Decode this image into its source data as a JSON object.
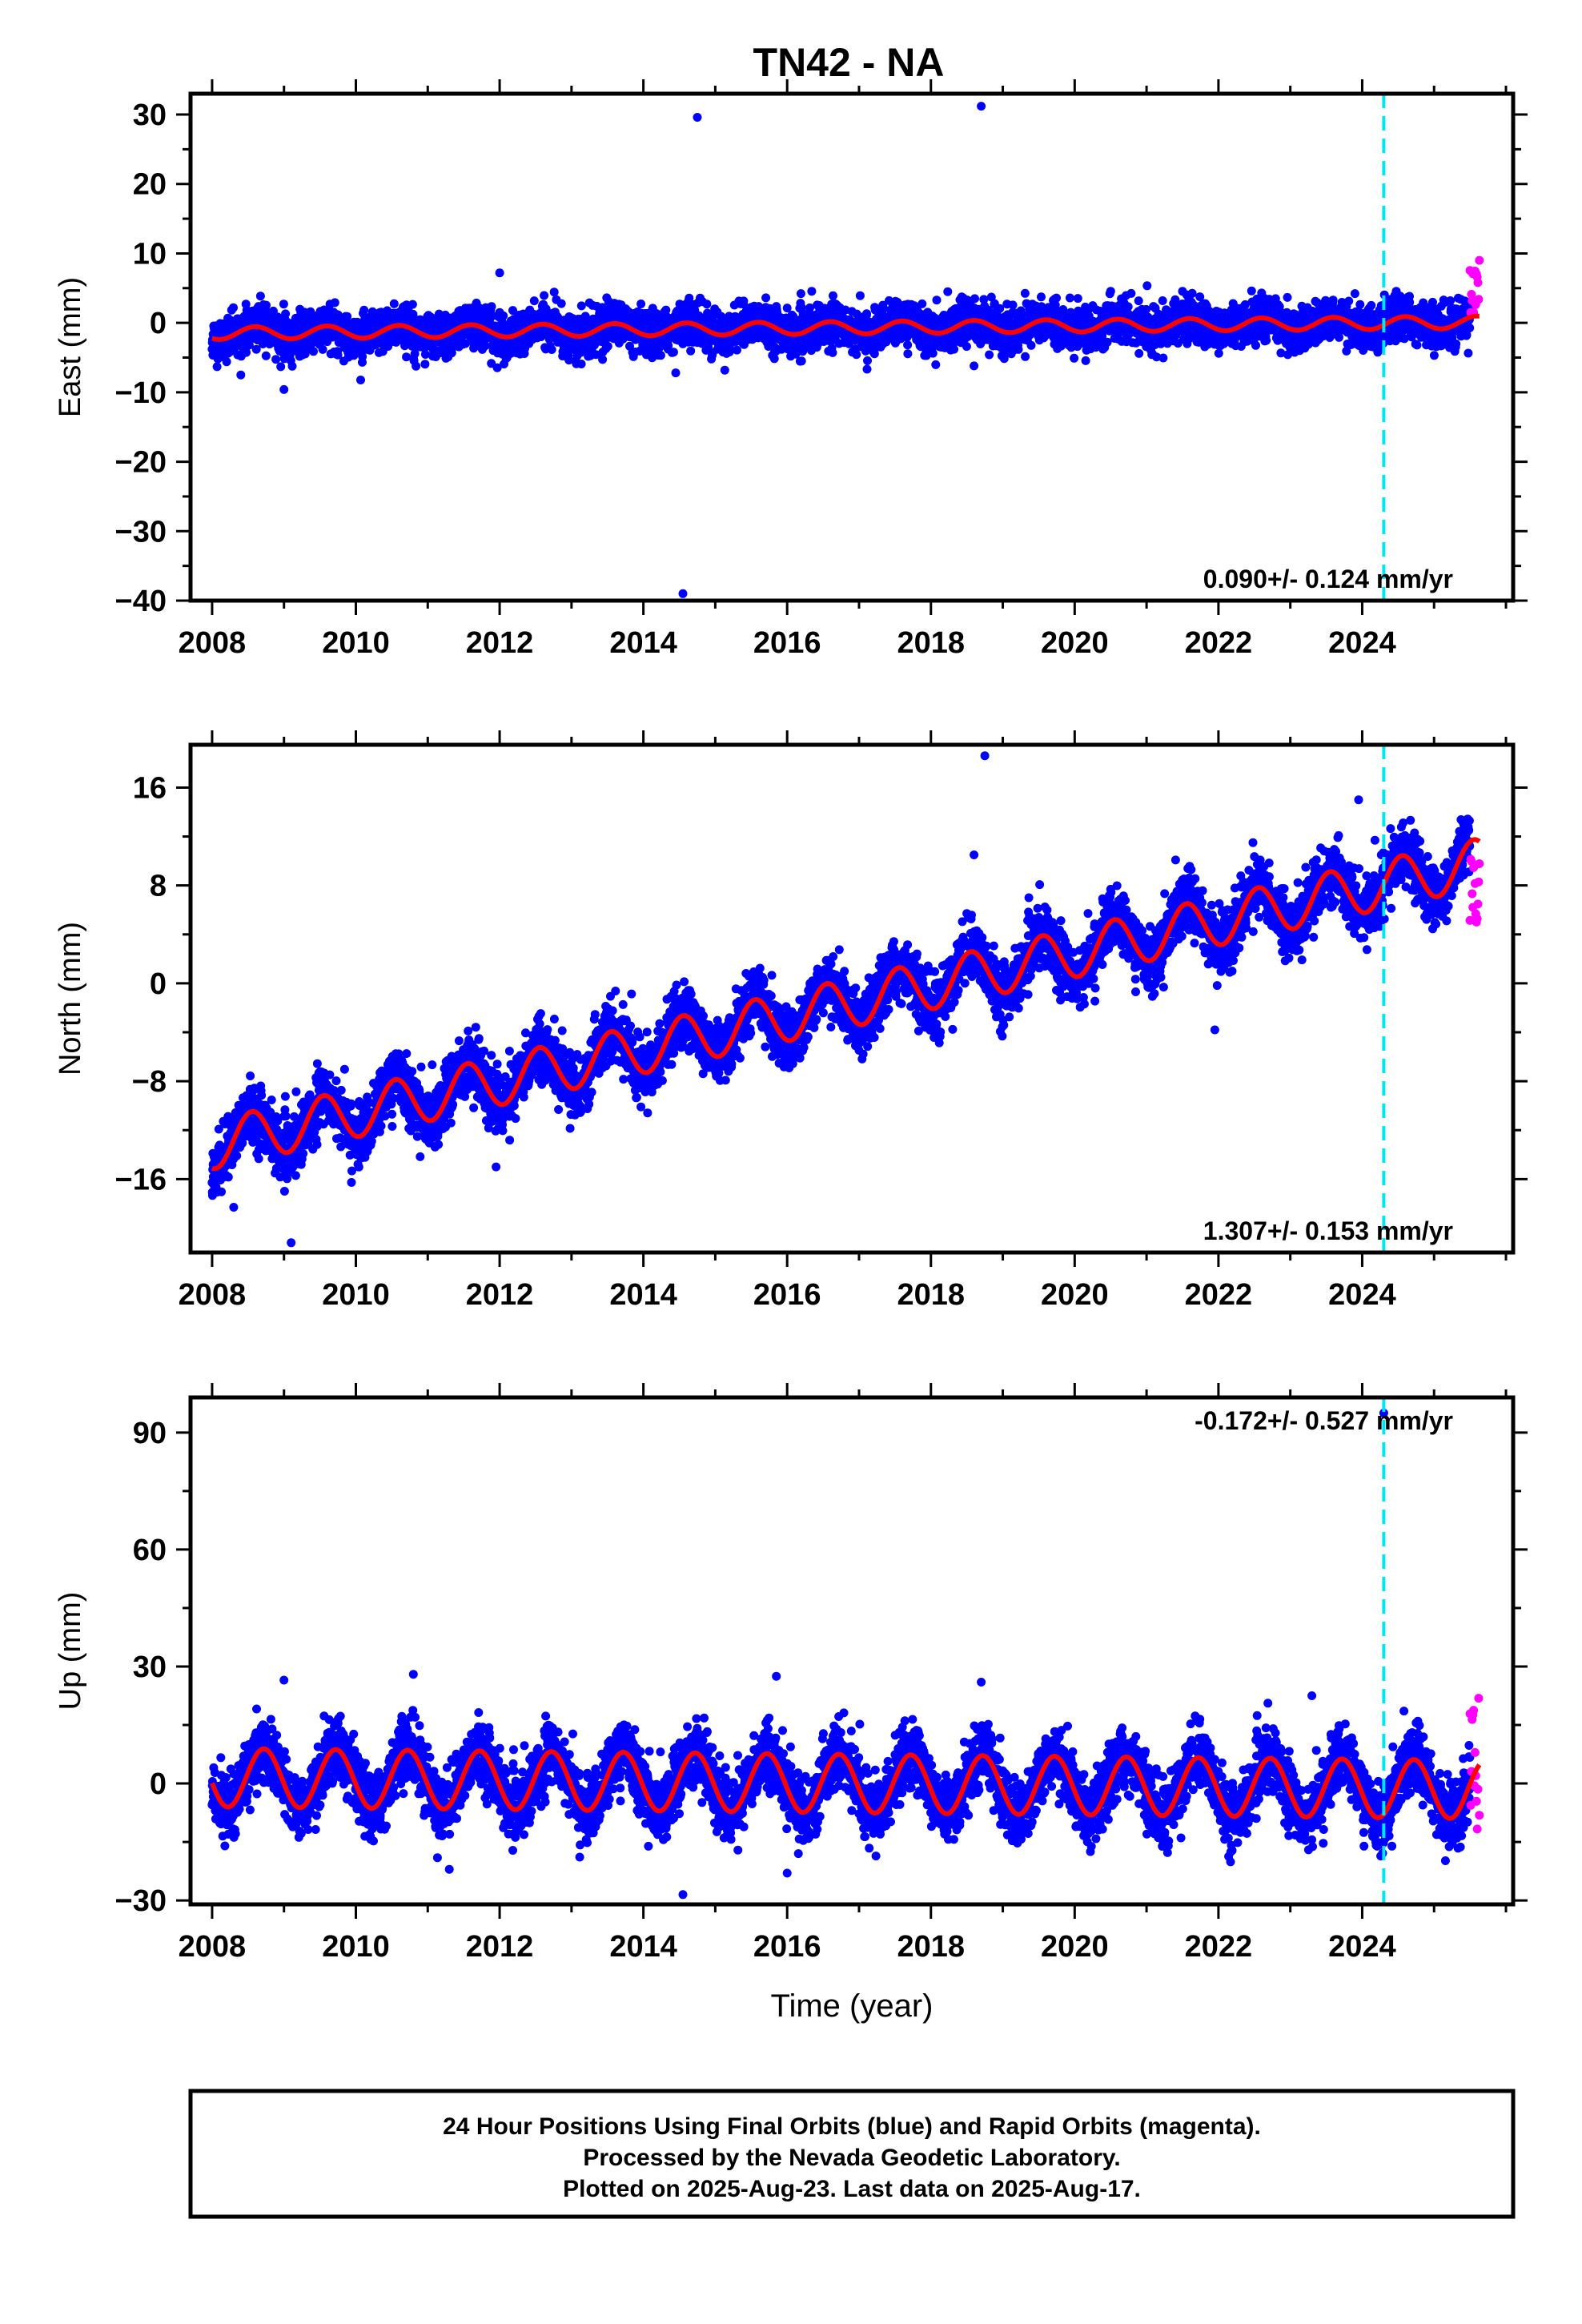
{
  "title": "TN42 - NA",
  "colors": {
    "final": "#0000ff",
    "rapid": "#ff00ff",
    "model": "#ff0000",
    "event": "#00e5ee"
  },
  "footer": {
    "line1": "24 Hour Positions Using Final Orbits (blue) and Rapid Orbits (magenta).",
    "line2": "Processed by the Nevada Geodetic Laboratory.",
    "line3": "Plotted on 2025-Aug-23. Last data on 2025-Aug-17."
  },
  "chart_data": [
    {
      "type": "scatter",
      "id": "east",
      "ylabel": "East (mm)",
      "xlabel": "",
      "xlim": [
        2007.7,
        2026.1
      ],
      "ylim": [
        -40,
        33
      ],
      "xticks": [
        2008,
        2010,
        2012,
        2014,
        2016,
        2018,
        2020,
        2022,
        2024
      ],
      "yticks": [
        30,
        20,
        10,
        0,
        -10,
        -20,
        -30,
        -40
      ],
      "rate_label": "0.090+/- 0.124 mm/yr",
      "event_x": 2024.3,
      "trend": {
        "start_year": 2008.0,
        "start": -1.5,
        "rate": 0.09,
        "amplitude": 0.9,
        "peak_phase": 0.6
      },
      "scatter_sd": 1.5,
      "rapid": {
        "x_start": 2025.5,
        "x_end": 2025.63,
        "y_min": 1.0,
        "y_max": 9.0
      },
      "outliers": [
        [
          2014.55,
          -39
        ],
        [
          2014.75,
          29.6
        ],
        [
          2018.7,
          31.2
        ],
        [
          2016.2,
          -5.5
        ],
        [
          2018.6,
          -6.2
        ],
        [
          2014.45,
          -7.2
        ],
        [
          2009.0,
          -9.6
        ],
        [
          2012.0,
          7.2
        ],
        [
          2008.4,
          -7.5
        ]
      ]
    },
    {
      "type": "scatter",
      "id": "north",
      "ylabel": "North (mm)",
      "xlabel": "",
      "xlim": [
        2007.7,
        2026.1
      ],
      "ylim": [
        -22,
        19.5
      ],
      "xticks": [
        2008,
        2010,
        2012,
        2014,
        2016,
        2018,
        2020,
        2022,
        2024
      ],
      "yticks": [
        16,
        8,
        0,
        -8,
        -16
      ],
      "rate_label": "1.307+/- 0.153 mm/yr",
      "event_x": 2024.3,
      "trend": {
        "start_year": 2008.0,
        "start": -13.2,
        "rate": 1.307,
        "amplitude": 2.0,
        "peak_phase": 0.55
      },
      "scatter_sd": 1.2,
      "rapid": {
        "x_start": 2025.5,
        "x_end": 2025.63,
        "y_min": 4.5,
        "y_max": 10.5
      },
      "outliers": [
        [
          2009.1,
          -21.2
        ],
        [
          2018.75,
          18.6
        ],
        [
          2018.6,
          10.5
        ],
        [
          2023.95,
          15.0
        ],
        [
          2021.95,
          -3.8
        ],
        [
          2011.95,
          -15.0
        ],
        [
          2008.3,
          -18.3
        ]
      ]
    },
    {
      "type": "scatter",
      "id": "up",
      "ylabel": "Up (mm)",
      "xlabel": "Time (year)",
      "xlim": [
        2007.7,
        2026.1
      ],
      "ylim": [
        -31,
        99
      ],
      "xticks": [
        2008,
        2010,
        2012,
        2014,
        2016,
        2018,
        2020,
        2022,
        2024
      ],
      "yticks": [
        90,
        60,
        30,
        0,
        -30
      ],
      "rate_label": "-0.172+/- 0.527 mm/yr",
      "event_x": 2024.3,
      "trend": {
        "start_year": 2008.0,
        "start": 1.5,
        "rate": -0.172,
        "amplitude": 7.5,
        "peak_phase": 0.72
      },
      "scatter_sd": 4.0,
      "rapid": {
        "x_start": 2025.5,
        "x_end": 2025.63,
        "y_min": -12.0,
        "y_max": 22.0
      },
      "outliers": [
        [
          2014.55,
          -28.5
        ],
        [
          2024.3,
          95.0
        ],
        [
          2015.85,
          27.5
        ],
        [
          2009.0,
          26.5
        ],
        [
          2010.8,
          28.0
        ],
        [
          2018.7,
          26.0
        ],
        [
          2023.3,
          22.5
        ],
        [
          2011.3,
          -22.0
        ],
        [
          2016.0,
          -23.0
        ]
      ]
    }
  ]
}
